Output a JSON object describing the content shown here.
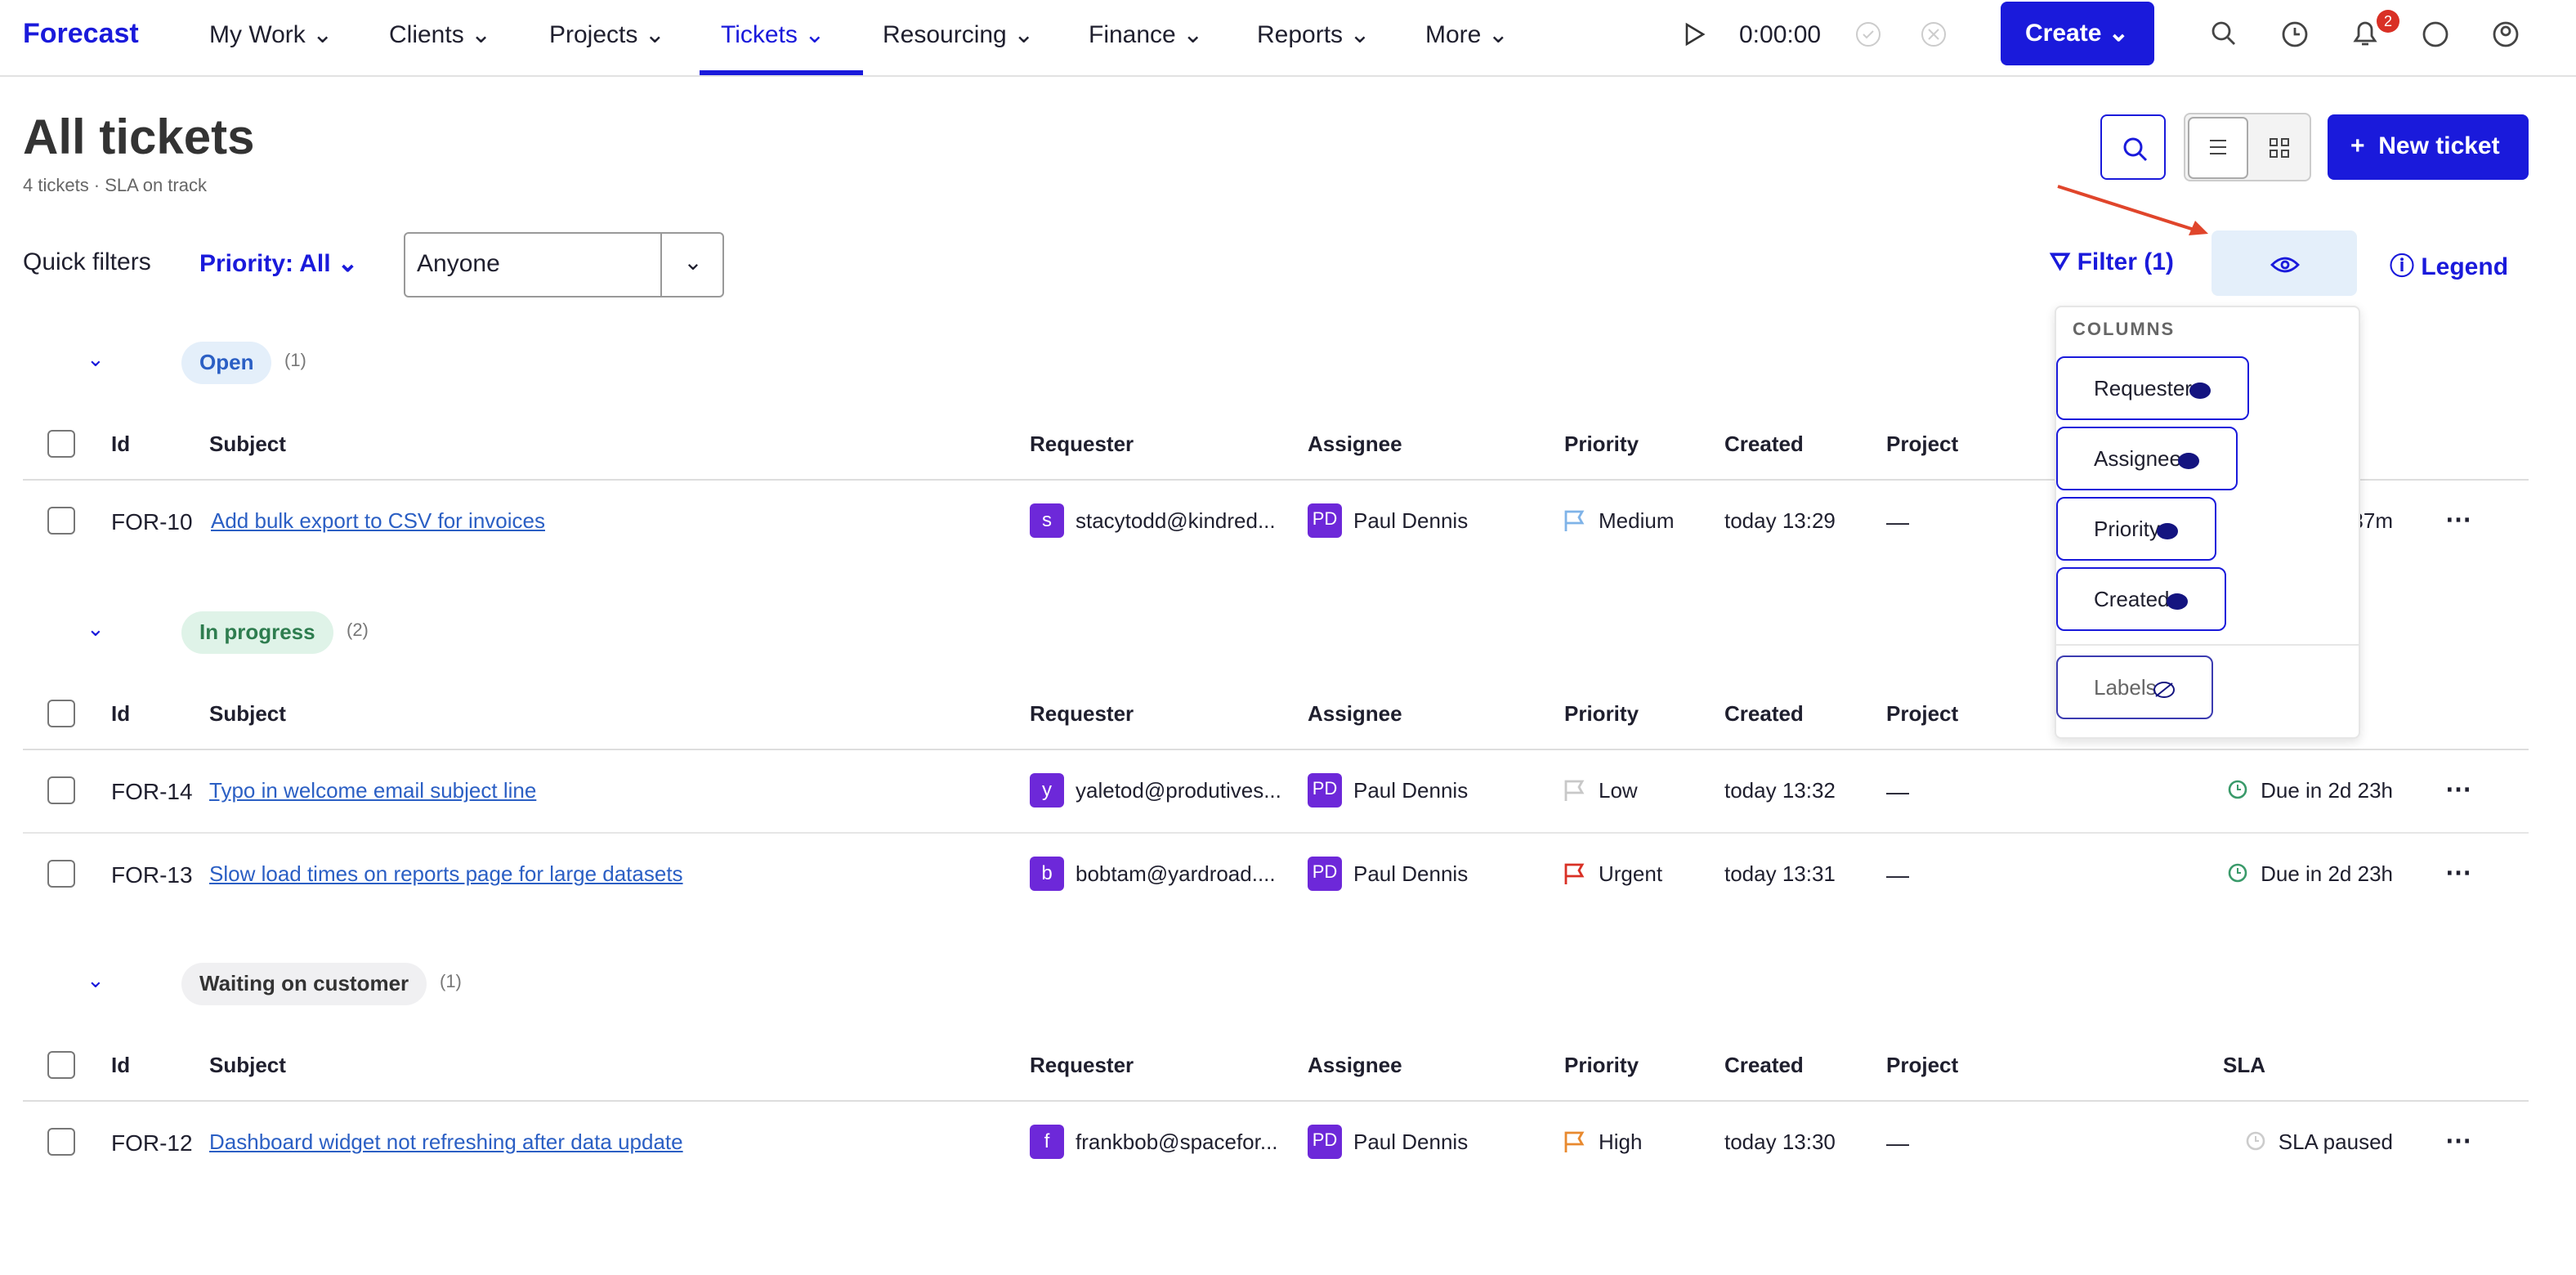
{
  "nav": {
    "brand": "Forecast",
    "items": [
      "My Work",
      "Clients",
      "Projects",
      "Tickets",
      "Resourcing",
      "Finance",
      "Reports",
      "More"
    ],
    "timer": "0:00:00",
    "create": "Create",
    "badge": "2"
  },
  "page": {
    "title": "All tickets",
    "subtitle": "4 tickets · SLA on track",
    "new_ticket": "New ticket"
  },
  "filters": {
    "label": "Quick filters",
    "priority": "Priority: All",
    "assignee": "Anyone",
    "filter": "Filter (1)",
    "legend": "Legend"
  },
  "columns_menu": {
    "heading": "COLUMNS",
    "visible": [
      "Requester",
      "Assignee",
      "Priority",
      "Created"
    ],
    "hidden": [
      "Labels"
    ]
  },
  "table": {
    "headers": [
      "Id",
      "Subject",
      "Requester",
      "Assignee",
      "Priority",
      "Created",
      "Project",
      "SLA"
    ],
    "groups": [
      {
        "name": "Open",
        "count": "(1)",
        "rows": [
          {
            "id": "FOR-10",
            "subject": "Add bulk export to CSV for invoices",
            "avatar": "s",
            "requester": "stacytodd@kindred...",
            "assignee_avatar": "PD",
            "assignee": "Paul Dennis",
            "priority": "Medium",
            "color": "#7fb3e8",
            "created": "today 13:29",
            "project": "—",
            "sla": "37m"
          }
        ]
      },
      {
        "name": "In progress",
        "count": "(2)",
        "rows": [
          {
            "id": "FOR-14",
            "subject": "Typo in welcome email subject line",
            "avatar": "y",
            "requester": "yaletod@produtives...",
            "assignee_avatar": "PD",
            "assignee": "Paul Dennis",
            "priority": "Low",
            "color": "#c8c8c8",
            "created": "today 13:32",
            "project": "—",
            "sla": "Due in 2d 23h"
          },
          {
            "id": "FOR-13",
            "subject": "Slow load times on reports page for large datasets",
            "avatar": "b",
            "requester": "bobtam@yardroad....",
            "assignee_avatar": "PD",
            "assignee": "Paul Dennis",
            "priority": "Urgent",
            "color": "#d93025",
            "created": "today 13:31",
            "project": "—",
            "sla": "Due in 2d 23h"
          }
        ]
      },
      {
        "name": "Waiting on customer",
        "count": "(1)",
        "rows": [
          {
            "id": "FOR-12",
            "subject": "Dashboard widget not refreshing after data update",
            "avatar": "f",
            "requester": "frankbob@spacefor...",
            "assignee_avatar": "PD",
            "assignee": "Paul Dennis",
            "priority": "High",
            "color": "#e8892e",
            "created": "today 13:30",
            "project": "—",
            "sla": "SLA paused"
          }
        ]
      }
    ]
  }
}
